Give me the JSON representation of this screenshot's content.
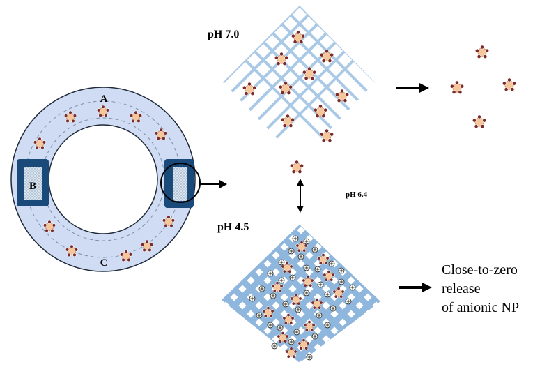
{
  "labels": {
    "ring_a": "A",
    "ring_b": "B",
    "ring_c": "C",
    "ph_top": "pH 7.0",
    "ph_mid": "pH 6.4",
    "ph_bottom": "pH 4.5",
    "release_line1": "Close-to-zero",
    "release_line2": "release",
    "release_line3": "of anionic NP"
  },
  "colors": {
    "ring_fill": "#cfdcf3",
    "ring_stroke": "#1f2a3a",
    "insert_fill": "#1a4a7a",
    "mesh": "#a9c9e6",
    "mesh_dense": "#8fb6dc",
    "np_fill": "#f6c69b",
    "np_dot": "#7a2a2a"
  }
}
